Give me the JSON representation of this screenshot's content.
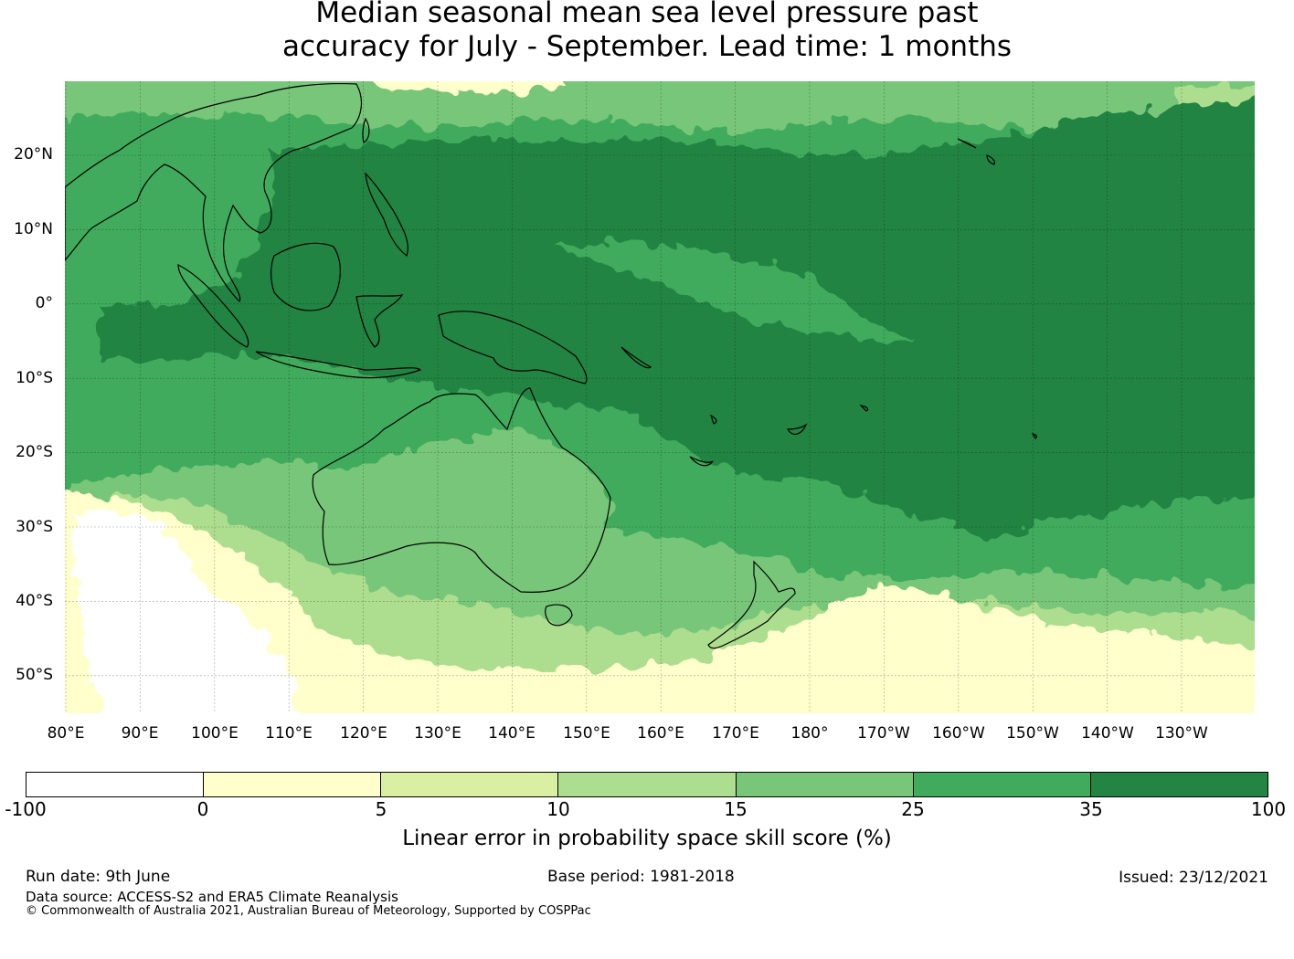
{
  "title_line1": "Median seasonal mean sea level pressure past",
  "title_line2": "accuracy for July - September. Lead time: 1 months",
  "map": {
    "lat_labels": [
      "20°N",
      "10°N",
      "0°",
      "10°S",
      "20°S",
      "30°S",
      "40°S",
      "50°S"
    ],
    "lon_labels": [
      "80°E",
      "90°E",
      "100°E",
      "110°E",
      "120°E",
      "130°E",
      "140°E",
      "150°E",
      "160°E",
      "170°E",
      "180°",
      "170°W",
      "160°W",
      "150°W",
      "140°W",
      "130°W"
    ],
    "colors": {
      "c0": "#ffffff",
      "c1": "#ffffcc",
      "c2": "#d9f0a3",
      "c3": "#addd8e",
      "c4": "#78c679",
      "c5": "#41ab5d",
      "c6": "#238443"
    }
  },
  "colorbar": {
    "ticks": [
      "-100",
      "0",
      "5",
      "10",
      "15",
      "25",
      "35",
      "100"
    ],
    "label": "Linear error in probability space skill score (%)"
  },
  "footer": {
    "run_date": "Run date: 9th June",
    "base_period": "Base period: 1981-2018",
    "issued": "Issued: 23/12/2021",
    "data_source": "Data source: ACCESS-S2 and ERA5 Climate Reanalysis",
    "copyright": "© Commonwealth of Australia 2021, Australian Bureau of Meteorology, Supported by COSPPac"
  }
}
